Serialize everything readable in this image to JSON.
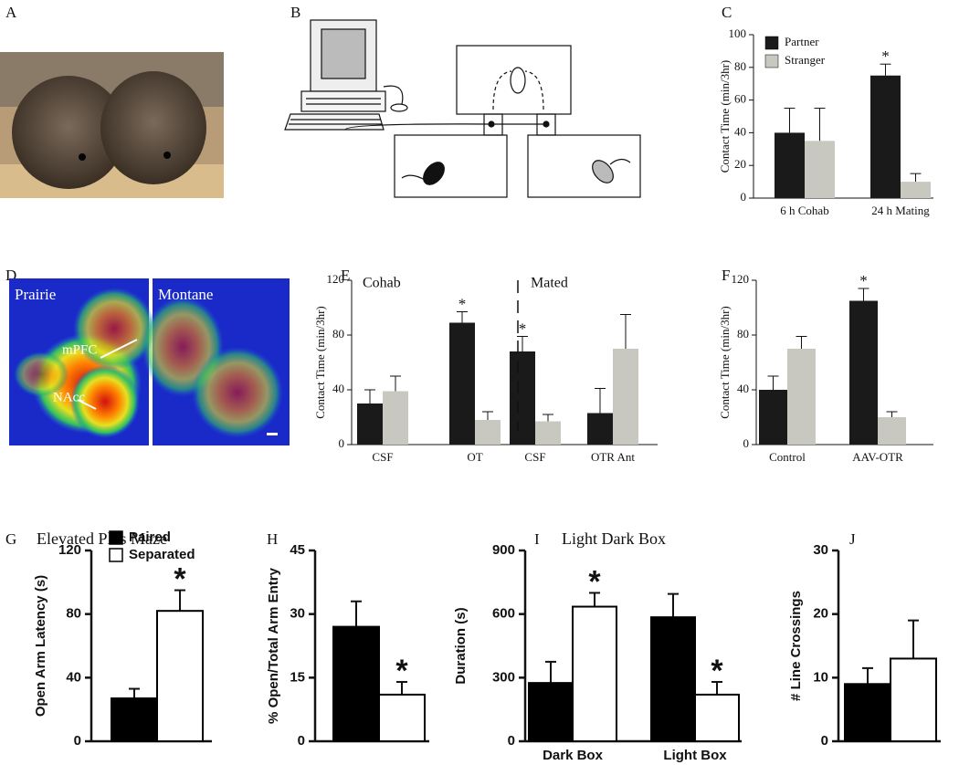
{
  "images": [
    {
      "panel": "A"
    },
    {
      "panel": "B"
    },
    {
      "panel": "D",
      "labels": [
        "Prairie",
        "Montane",
        "mPFC",
        "NAcc"
      ]
    }
  ],
  "chart_data": [
    {
      "type": "bar",
      "panel": "C",
      "ylabel": "Contact Time (min/3hr)",
      "categories": [
        "6 h Cohab",
        "24 h Mating"
      ],
      "series": [
        {
          "name": "Partner",
          "color": "#1a1a1a",
          "values": [
            40,
            75
          ],
          "errors": [
            15,
            7
          ],
          "significance": [
            null,
            "*"
          ]
        },
        {
          "name": "Stranger",
          "color": "#c8c8c0",
          "values": [
            35,
            10
          ],
          "errors": [
            20,
            5
          ],
          "significance": [
            null,
            null
          ]
        }
      ],
      "ylim": [
        0,
        100
      ],
      "yticks": [
        0,
        20,
        40,
        60,
        80,
        100
      ],
      "legend": "upper left",
      "font": "serif"
    },
    {
      "type": "bar",
      "panel": "E",
      "ylabel": "Contact Time (min/3hr)",
      "categories": [
        "CSF",
        "OT",
        "CSF",
        "OTR Ant"
      ],
      "group_labels": [
        "Cohab",
        "Mated"
      ],
      "series": [
        {
          "color": "#1a1a1a",
          "values": [
            30,
            89,
            68,
            23
          ],
          "errors": [
            10,
            8,
            11,
            18
          ],
          "significance": [
            null,
            "*",
            "*",
            null
          ]
        },
        {
          "color": "#c8c8c0",
          "values": [
            39,
            18,
            17,
            70
          ],
          "errors": [
            11,
            6,
            5,
            25
          ],
          "significance": [
            null,
            null,
            null,
            null
          ]
        }
      ],
      "ylim": [
        0,
        120
      ],
      "yticks": [
        0,
        40,
        80,
        120
      ],
      "font": "serif"
    },
    {
      "type": "bar",
      "panel": "F",
      "ylabel": "Contact Time (min/3hr)",
      "categories": [
        "Control",
        "AAV-OTR"
      ],
      "series": [
        {
          "color": "#1a1a1a",
          "values": [
            40,
            105
          ],
          "errors": [
            10,
            9
          ],
          "significance": [
            null,
            "*"
          ]
        },
        {
          "color": "#c8c8c0",
          "values": [
            70,
            20
          ],
          "errors": [
            9,
            4
          ],
          "significance": [
            null,
            null
          ]
        }
      ],
      "ylim": [
        0,
        120
      ],
      "yticks": [
        0,
        40,
        80,
        120
      ],
      "font": "serif"
    },
    {
      "type": "bar",
      "panel": "G",
      "title": "Elevated Plus Maze",
      "ylabel": "Open Arm Latency (s)",
      "categories": [
        null
      ],
      "series": [
        {
          "name": "Paired",
          "color": "#000000",
          "values": [
            27
          ],
          "errors": [
            6
          ],
          "significance": [
            null
          ]
        },
        {
          "name": "Separated",
          "color": "#ffffff",
          "values": [
            82
          ],
          "errors": [
            13
          ],
          "significance": [
            "*"
          ]
        }
      ],
      "ylim": [
        0,
        120
      ],
      "yticks": [
        0,
        40,
        80,
        120
      ],
      "legend": "upper left",
      "font": "sans"
    },
    {
      "type": "bar",
      "panel": "H",
      "ylabel": "% Open/Total Arm Entry",
      "categories": [
        null
      ],
      "series": [
        {
          "color": "#000000",
          "values": [
            27
          ],
          "errors": [
            6
          ],
          "significance": [
            null
          ]
        },
        {
          "color": "#ffffff",
          "values": [
            11
          ],
          "errors": [
            3
          ],
          "significance": [
            "*"
          ]
        }
      ],
      "ylim": [
        0,
        45
      ],
      "yticks": [
        0,
        15,
        30,
        45
      ],
      "font": "sans"
    },
    {
      "type": "bar",
      "panel": "I",
      "title": "Light Dark Box",
      "ylabel": "Duration (s)",
      "categories": [
        "Dark Box",
        "Light Box"
      ],
      "series": [
        {
          "color": "#000000",
          "values": [
            275,
            585
          ],
          "errors": [
            100,
            110
          ],
          "significance": [
            null,
            null
          ]
        },
        {
          "color": "#ffffff",
          "values": [
            635,
            220
          ],
          "errors": [
            65,
            60
          ],
          "significance": [
            "*",
            "*"
          ]
        }
      ],
      "ylim": [
        0,
        900
      ],
      "yticks": [
        0,
        300,
        600,
        900
      ],
      "font": "sans"
    },
    {
      "type": "bar",
      "panel": "J",
      "ylabel": "# Line Crossings",
      "categories": [
        null
      ],
      "series": [
        {
          "color": "#000000",
          "values": [
            9
          ],
          "errors": [
            2.5
          ],
          "significance": [
            null
          ]
        },
        {
          "color": "#ffffff",
          "values": [
            13
          ],
          "errors": [
            6
          ],
          "significance": [
            null
          ]
        }
      ],
      "ylim": [
        0,
        30
      ],
      "yticks": [
        0,
        10,
        20,
        30
      ],
      "font": "sans"
    }
  ]
}
